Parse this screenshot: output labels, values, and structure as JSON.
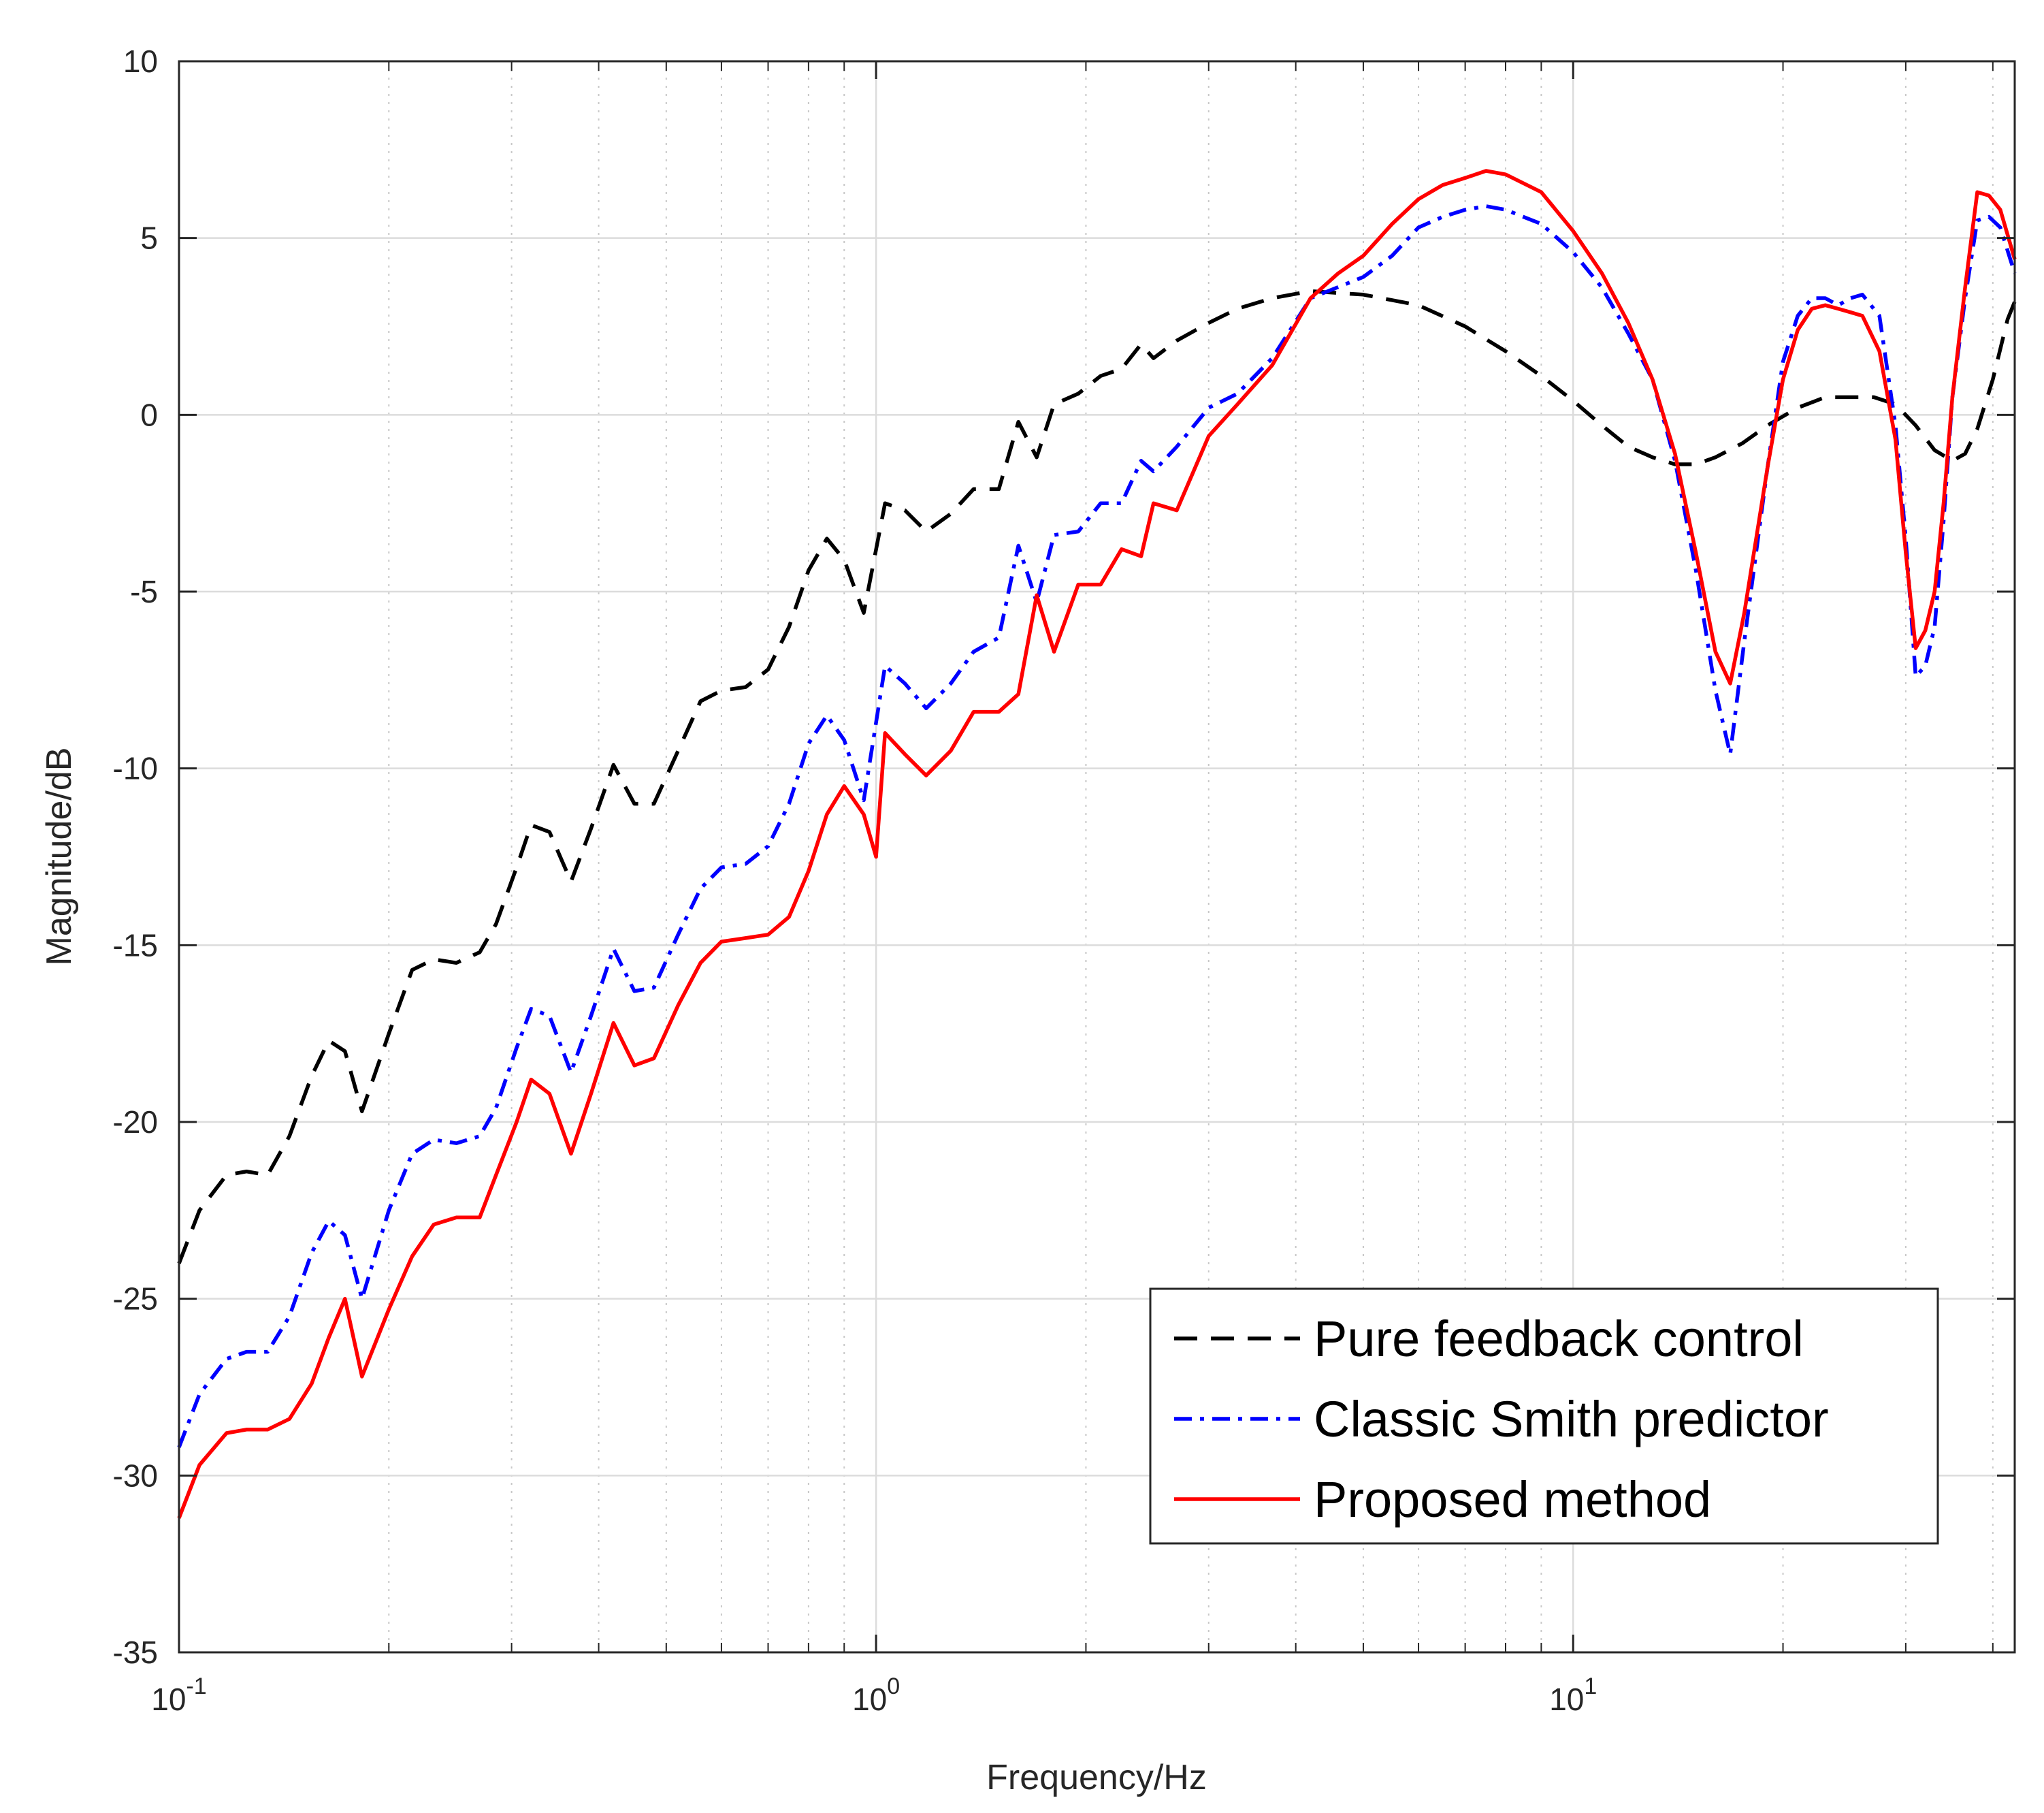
{
  "chart_data": {
    "type": "line",
    "title": "",
    "xlabel": "Frequency/Hz",
    "ylabel": "Magnitude/dB",
    "xscale": "log",
    "xlim": [
      0.1,
      43
    ],
    "ylim": [
      -35,
      10
    ],
    "grid": true,
    "x_ticks": [
      0.1,
      1,
      10
    ],
    "x_tick_labels": [
      {
        "base": "10",
        "exp": "-1"
      },
      {
        "base": "10",
        "exp": "0"
      },
      {
        "base": "10",
        "exp": "1"
      }
    ],
    "y_ticks": [
      -35,
      -30,
      -25,
      -20,
      -15,
      -10,
      -5,
      0,
      5,
      10
    ],
    "y_tick_labels": [
      "-35",
      "-30",
      "-25",
      "-20",
      "-15",
      "-10",
      "-5",
      "0",
      "5",
      "10"
    ],
    "legend_position": "lower-right",
    "series": [
      {
        "name": "Pure feedback control",
        "color": "#000000",
        "style": "dashed",
        "points": [
          [
            0.1,
            -24.0
          ],
          [
            0.107,
            -22.5
          ],
          [
            0.117,
            -21.5
          ],
          [
            0.125,
            -21.4
          ],
          [
            0.134,
            -21.5
          ],
          [
            0.144,
            -20.4
          ],
          [
            0.155,
            -18.7
          ],
          [
            0.164,
            -17.7
          ],
          [
            0.173,
            -18.0
          ],
          [
            0.183,
            -19.7
          ],
          [
            0.2,
            -17.5
          ],
          [
            0.216,
            -15.7
          ],
          [
            0.232,
            -15.4
          ],
          [
            0.25,
            -15.5
          ],
          [
            0.27,
            -15.2
          ],
          [
            0.285,
            -14.4
          ],
          [
            0.305,
            -12.8
          ],
          [
            0.32,
            -11.6
          ],
          [
            0.34,
            -11.8
          ],
          [
            0.365,
            -13.2
          ],
          [
            0.39,
            -11.7
          ],
          [
            0.42,
            -9.9
          ],
          [
            0.45,
            -11.0
          ],
          [
            0.48,
            -11.0
          ],
          [
            0.52,
            -9.5
          ],
          [
            0.56,
            -8.1
          ],
          [
            0.6,
            -7.8
          ],
          [
            0.65,
            -7.7
          ],
          [
            0.7,
            -7.2
          ],
          [
            0.75,
            -6.0
          ],
          [
            0.8,
            -4.4
          ],
          [
            0.85,
            -3.5
          ],
          [
            0.9,
            -4.1
          ],
          [
            0.96,
            -5.6
          ],
          [
            1.03,
            -2.5
          ],
          [
            1.1,
            -2.7
          ],
          [
            1.18,
            -3.3
          ],
          [
            1.28,
            -2.8
          ],
          [
            1.38,
            -2.1
          ],
          [
            1.5,
            -2.1
          ],
          [
            1.6,
            -0.2
          ],
          [
            1.7,
            -1.2
          ],
          [
            1.8,
            0.3
          ],
          [
            1.95,
            0.6
          ],
          [
            2.1,
            1.1
          ],
          [
            2.25,
            1.3
          ],
          [
            2.4,
            2.0
          ],
          [
            2.5,
            1.6
          ],
          [
            2.7,
            2.1
          ],
          [
            3.0,
            2.6
          ],
          [
            3.3,
            3.0
          ],
          [
            3.7,
            3.3
          ],
          [
            4.2,
            3.5
          ],
          [
            5.0,
            3.4
          ],
          [
            6.0,
            3.1
          ],
          [
            7.0,
            2.5
          ],
          [
            8.0,
            1.8
          ],
          [
            9.0,
            1.1
          ],
          [
            10.0,
            0.4
          ],
          [
            11.0,
            -0.3
          ],
          [
            12.0,
            -0.9
          ],
          [
            13.0,
            -1.2
          ],
          [
            14.0,
            -1.4
          ],
          [
            15.0,
            -1.4
          ],
          [
            16.0,
            -1.2
          ],
          [
            17.5,
            -0.8
          ],
          [
            19.0,
            -0.3
          ],
          [
            21.0,
            0.2
          ],
          [
            23.0,
            0.5
          ],
          [
            25.0,
            0.5
          ],
          [
            27.0,
            0.5
          ],
          [
            29.0,
            0.3
          ],
          [
            31.0,
            -0.3
          ],
          [
            33.0,
            -1.0
          ],
          [
            35.0,
            -1.3
          ],
          [
            36.5,
            -1.1
          ],
          [
            38.0,
            -0.4
          ],
          [
            40.0,
            1.0
          ],
          [
            42.0,
            2.7
          ],
          [
            43.0,
            3.2
          ]
        ]
      },
      {
        "name": "Classic Smith predictor",
        "color": "#0000ff",
        "style": "dash-dot",
        "points": [
          [
            0.1,
            -29.2
          ],
          [
            0.107,
            -27.7
          ],
          [
            0.117,
            -26.7
          ],
          [
            0.125,
            -26.5
          ],
          [
            0.134,
            -26.5
          ],
          [
            0.144,
            -25.5
          ],
          [
            0.155,
            -23.7
          ],
          [
            0.164,
            -22.8
          ],
          [
            0.173,
            -23.2
          ],
          [
            0.183,
            -25.0
          ],
          [
            0.2,
            -22.5
          ],
          [
            0.216,
            -20.9
          ],
          [
            0.232,
            -20.5
          ],
          [
            0.25,
            -20.6
          ],
          [
            0.27,
            -20.4
          ],
          [
            0.285,
            -19.6
          ],
          [
            0.305,
            -17.9
          ],
          [
            0.32,
            -16.8
          ],
          [
            0.34,
            -17.0
          ],
          [
            0.365,
            -18.6
          ],
          [
            0.39,
            -17.0
          ],
          [
            0.42,
            -15.1
          ],
          [
            0.45,
            -16.3
          ],
          [
            0.48,
            -16.2
          ],
          [
            0.52,
            -14.7
          ],
          [
            0.56,
            -13.4
          ],
          [
            0.6,
            -12.8
          ],
          [
            0.65,
            -12.7
          ],
          [
            0.7,
            -12.2
          ],
          [
            0.75,
            -11.0
          ],
          [
            0.8,
            -9.3
          ],
          [
            0.85,
            -8.5
          ],
          [
            0.9,
            -9.2
          ],
          [
            0.96,
            -10.9
          ],
          [
            1.03,
            -7.1
          ],
          [
            1.1,
            -7.6
          ],
          [
            1.18,
            -8.3
          ],
          [
            1.28,
            -7.6
          ],
          [
            1.38,
            -6.7
          ],
          [
            1.5,
            -6.3
          ],
          [
            1.6,
            -3.7
          ],
          [
            1.7,
            -5.3
          ],
          [
            1.8,
            -3.4
          ],
          [
            1.95,
            -3.3
          ],
          [
            2.1,
            -2.5
          ],
          [
            2.25,
            -2.5
          ],
          [
            2.4,
            -1.3
          ],
          [
            2.5,
            -1.6
          ],
          [
            2.7,
            -0.9
          ],
          [
            3.0,
            0.2
          ],
          [
            3.3,
            0.6
          ],
          [
            3.7,
            1.6
          ],
          [
            4.2,
            3.3
          ],
          [
            5.0,
            3.9
          ],
          [
            5.5,
            4.5
          ],
          [
            6.0,
            5.3
          ],
          [
            6.5,
            5.6
          ],
          [
            7.0,
            5.8
          ],
          [
            7.5,
            5.9
          ],
          [
            8.0,
            5.8
          ],
          [
            9.0,
            5.4
          ],
          [
            10.0,
            4.6
          ],
          [
            11.0,
            3.6
          ],
          [
            12.0,
            2.3
          ],
          [
            13.0,
            1.0
          ],
          [
            14.0,
            -1.3
          ],
          [
            15.0,
            -4.4
          ],
          [
            16.0,
            -7.8
          ],
          [
            16.8,
            -9.6
          ],
          [
            17.6,
            -6.4
          ],
          [
            19.0,
            -1.5
          ],
          [
            20.0,
            1.5
          ],
          [
            21.0,
            2.8
          ],
          [
            22.0,
            3.3
          ],
          [
            23.0,
            3.3
          ],
          [
            24.0,
            3.1
          ],
          [
            25.0,
            3.3
          ],
          [
            26.0,
            3.4
          ],
          [
            27.5,
            2.8
          ],
          [
            29.0,
            -0.3
          ],
          [
            30.0,
            -3.5
          ],
          [
            31.0,
            -7.4
          ],
          [
            32.0,
            -7.1
          ],
          [
            33.0,
            -6.0
          ],
          [
            34.0,
            -3.0
          ],
          [
            35.0,
            0.5
          ],
          [
            36.5,
            3.3
          ],
          [
            38.0,
            5.5
          ],
          [
            39.5,
            5.6
          ],
          [
            41.0,
            5.3
          ],
          [
            43.0,
            4.0
          ]
        ]
      },
      {
        "name": "Proposed method",
        "color": "#ff0000",
        "style": "solid",
        "points": [
          [
            0.1,
            -31.2
          ],
          [
            0.107,
            -29.7
          ],
          [
            0.117,
            -28.8
          ],
          [
            0.125,
            -28.7
          ],
          [
            0.134,
            -28.7
          ],
          [
            0.144,
            -28.4
          ],
          [
            0.155,
            -27.4
          ],
          [
            0.164,
            -26.1
          ],
          [
            0.173,
            -25.0
          ],
          [
            0.183,
            -27.2
          ],
          [
            0.2,
            -25.3
          ],
          [
            0.216,
            -23.8
          ],
          [
            0.232,
            -22.9
          ],
          [
            0.25,
            -22.7
          ],
          [
            0.27,
            -22.7
          ],
          [
            0.285,
            -21.5
          ],
          [
            0.305,
            -20.0
          ],
          [
            0.32,
            -18.8
          ],
          [
            0.34,
            -19.2
          ],
          [
            0.365,
            -20.9
          ],
          [
            0.39,
            -19.2
          ],
          [
            0.42,
            -17.2
          ],
          [
            0.45,
            -18.4
          ],
          [
            0.48,
            -18.2
          ],
          [
            0.52,
            -16.7
          ],
          [
            0.56,
            -15.5
          ],
          [
            0.6,
            -14.9
          ],
          [
            0.65,
            -14.8
          ],
          [
            0.7,
            -14.7
          ],
          [
            0.75,
            -14.2
          ],
          [
            0.8,
            -12.9
          ],
          [
            0.85,
            -11.3
          ],
          [
            0.9,
            -10.5
          ],
          [
            0.96,
            -11.3
          ],
          [
            1.0,
            -12.5
          ],
          [
            1.03,
            -9.0
          ],
          [
            1.1,
            -9.6
          ],
          [
            1.18,
            -10.2
          ],
          [
            1.28,
            -9.5
          ],
          [
            1.38,
            -8.4
          ],
          [
            1.5,
            -8.4
          ],
          [
            1.6,
            -7.9
          ],
          [
            1.7,
            -5.1
          ],
          [
            1.8,
            -6.7
          ],
          [
            1.95,
            -4.8
          ],
          [
            2.1,
            -4.8
          ],
          [
            2.25,
            -3.8
          ],
          [
            2.4,
            -4.0
          ],
          [
            2.5,
            -2.5
          ],
          [
            2.7,
            -2.7
          ],
          [
            3.0,
            -0.6
          ],
          [
            3.3,
            0.3
          ],
          [
            3.7,
            1.4
          ],
          [
            4.2,
            3.3
          ],
          [
            4.6,
            4.0
          ],
          [
            5.0,
            4.5
          ],
          [
            5.5,
            5.4
          ],
          [
            6.0,
            6.1
          ],
          [
            6.5,
            6.5
          ],
          [
            7.0,
            6.7
          ],
          [
            7.5,
            6.9
          ],
          [
            8.0,
            6.8
          ],
          [
            9.0,
            6.3
          ],
          [
            10.0,
            5.2
          ],
          [
            11.0,
            4.0
          ],
          [
            12.0,
            2.6
          ],
          [
            13.0,
            1.0
          ],
          [
            14.0,
            -1.1
          ],
          [
            15.0,
            -3.9
          ],
          [
            16.0,
            -6.7
          ],
          [
            16.8,
            -7.6
          ],
          [
            17.6,
            -5.6
          ],
          [
            19.0,
            -1.5
          ],
          [
            20.0,
            1.0
          ],
          [
            21.0,
            2.4
          ],
          [
            22.0,
            3.0
          ],
          [
            23.0,
            3.1
          ],
          [
            24.0,
            3.0
          ],
          [
            25.0,
            2.9
          ],
          [
            26.0,
            2.8
          ],
          [
            27.5,
            1.8
          ],
          [
            29.0,
            -0.7
          ],
          [
            30.0,
            -3.9
          ],
          [
            31.0,
            -6.6
          ],
          [
            32.0,
            -6.1
          ],
          [
            33.0,
            -5.0
          ],
          [
            34.0,
            -2.5
          ],
          [
            35.0,
            0.5
          ],
          [
            36.5,
            3.6
          ],
          [
            38.0,
            6.3
          ],
          [
            39.5,
            6.2
          ],
          [
            41.0,
            5.8
          ],
          [
            43.0,
            4.4
          ]
        ]
      }
    ]
  }
}
